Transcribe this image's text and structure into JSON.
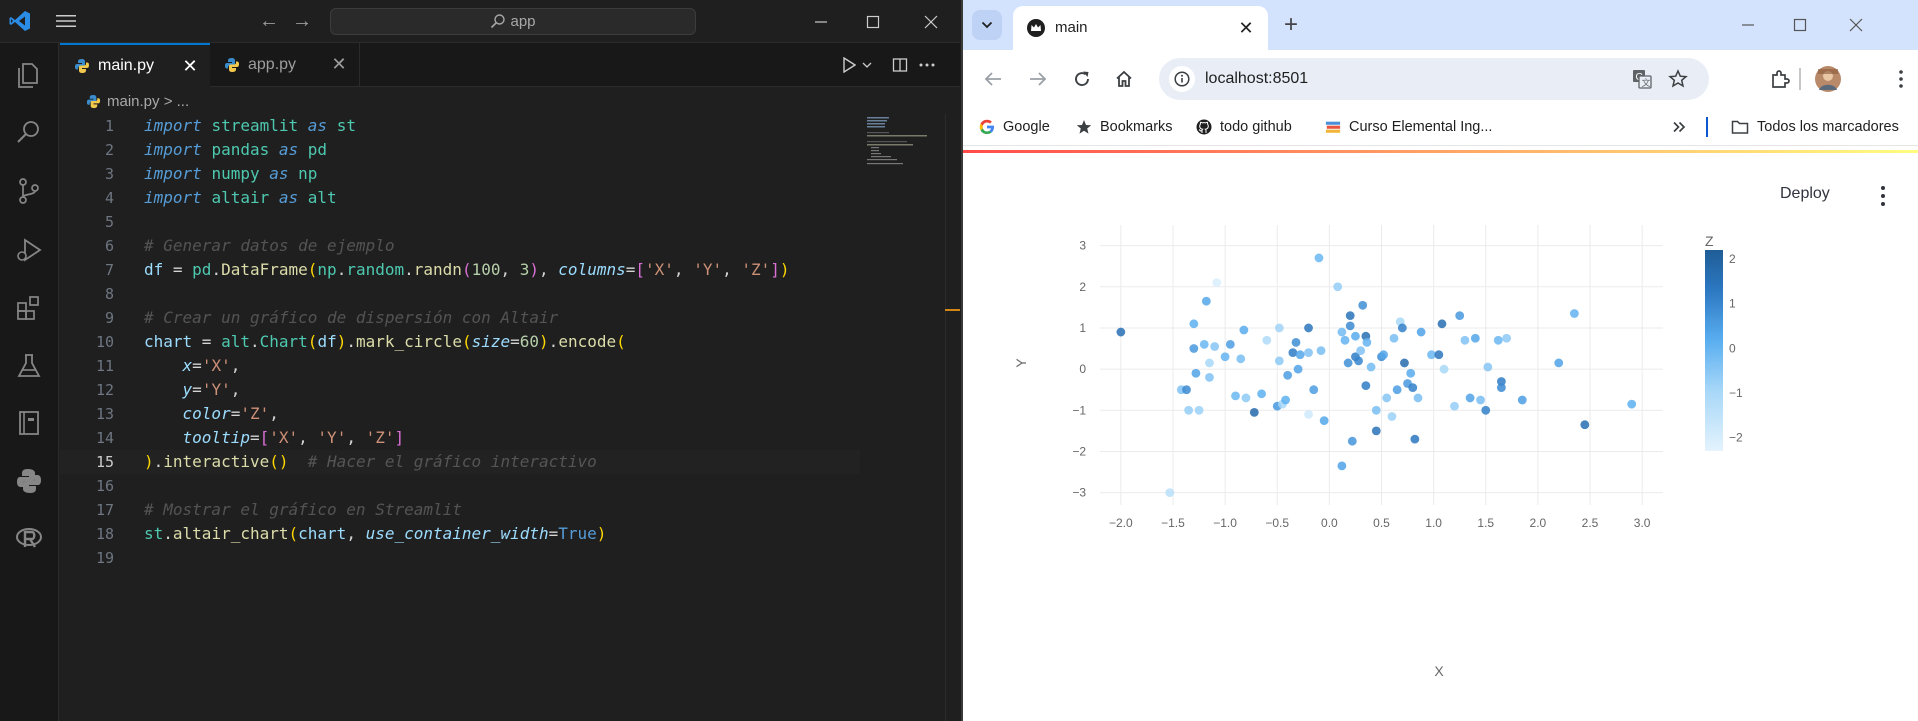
{
  "vscode": {
    "search_text": "app",
    "tabs": [
      {
        "label": "main.py",
        "active": true
      },
      {
        "label": "app.py",
        "active": false
      }
    ],
    "breadcrumb": {
      "file": "main.py",
      "sep": ">",
      "more": "..."
    },
    "current_line": 15,
    "line_numbers": [
      "1",
      "2",
      "3",
      "4",
      "5",
      "6",
      "7",
      "8",
      "9",
      "10",
      "11",
      "12",
      "13",
      "14",
      "15",
      "16",
      "17",
      "18",
      "19"
    ],
    "code": {
      "l1": [
        "import",
        "streamlit",
        "as",
        "st"
      ],
      "l2": [
        "import",
        "pandas",
        "as",
        "pd"
      ],
      "l3": [
        "import",
        "numpy",
        "as",
        "np"
      ],
      "l4": [
        "import",
        "altair",
        "as",
        "alt"
      ],
      "l6": "# Generar datos de ejemplo",
      "l7": {
        "df": "df",
        "eq": " = ",
        "pd": "pd",
        "dot": ".",
        "DataFrame": "DataFrame",
        "np": "np",
        "random": "random",
        "randn": "randn",
        "n1": "100",
        "n2": "3",
        "columns": "columns",
        "s1": "'X'",
        "s2": "'Y'",
        "s3": "'Z'"
      },
      "l9": "# Crear un gráfico de dispersión con Altair",
      "l10": {
        "chart": "chart",
        "alt": "alt",
        "Chart": "Chart",
        "df": "df",
        "mark_circle": "mark_circle",
        "size": "size",
        "sixty": "60",
        "encode": "encode"
      },
      "l11": {
        "k": "x",
        "v": "'X'"
      },
      "l12": {
        "k": "y",
        "v": "'Y'"
      },
      "l13": {
        "k": "color",
        "v": "'Z'"
      },
      "l14": {
        "k": "tooltip",
        "s1": "'X'",
        "s2": "'Y'",
        "s3": "'Z'"
      },
      "l15": {
        "interactive": "interactive",
        "comment": "# Hacer el gráfico interactivo"
      },
      "l17": "# Mostrar el gráfico en Streamlit",
      "l18": {
        "st": "st",
        "fn": "altair_chart",
        "chart": "chart",
        "param": "use_container_width",
        "val": "True"
      }
    }
  },
  "chrome": {
    "tab_title": "main",
    "url": "localhost:8501",
    "bookmarks": [
      "Google",
      "Bookmarks",
      "todo github",
      "Curso Elemental Ing...",
      "Todos los marcadores"
    ],
    "colors": {
      "tabstrip": "#d3e3fd",
      "accent": "#0b57d0"
    }
  },
  "streamlit": {
    "deploy_label": "Deploy"
  },
  "chart_data": {
    "type": "scatter",
    "xlabel": "X",
    "ylabel": "Y",
    "legend_title": "Z",
    "legend_position": "right",
    "xlim": [
      -2.2,
      3.2
    ],
    "ylim": [
      -3.3,
      3.5
    ],
    "x_ticks": [
      -2.0,
      -1.5,
      -1.0,
      -0.5,
      0.0,
      0.5,
      1.0,
      1.5,
      2.0,
      2.5,
      3.0
    ],
    "x_tick_labels": [
      "−2.0",
      "−1.5",
      "−1.0",
      "−0.5",
      "0.0",
      "0.5",
      "1.0",
      "1.5",
      "2.0",
      "2.5",
      "3.0"
    ],
    "y_ticks": [
      -3,
      -2,
      -1,
      0,
      1,
      2,
      3
    ],
    "y_tick_labels": [
      "−3",
      "−2",
      "−1",
      "0",
      "1",
      "2",
      "3"
    ],
    "color_ticks": [
      2,
      1,
      0,
      -1,
      -2
    ],
    "color_tick_labels": [
      "2",
      "1",
      "0",
      "−1",
      "−2"
    ],
    "color_range": [
      -2.3,
      2.2
    ],
    "color_scale": [
      "#e4f3fd",
      "#a7d7f8",
      "#5aaef0",
      "#2c78c2",
      "#1f5d96"
    ],
    "grid": true,
    "points": [
      {
        "x": -2.0,
        "y": 0.9,
        "z": 1.4
      },
      {
        "x": -1.53,
        "y": -3.0,
        "z": -1.5
      },
      {
        "x": -1.42,
        "y": -0.5,
        "z": -0.6
      },
      {
        "x": -1.37,
        "y": -0.5,
        "z": 0.7
      },
      {
        "x": -1.35,
        "y": -1.0,
        "z": -0.9
      },
      {
        "x": -1.3,
        "y": 1.1,
        "z": -0.1
      },
      {
        "x": -1.3,
        "y": 0.5,
        "z": 0.4
      },
      {
        "x": -1.28,
        "y": -0.1,
        "z": 0.2
      },
      {
        "x": -1.25,
        "y": -1.0,
        "z": -1.0
      },
      {
        "x": -1.2,
        "y": 0.6,
        "z": -0.3
      },
      {
        "x": -1.18,
        "y": 1.65,
        "z": 0.1
      },
      {
        "x": -1.15,
        "y": 0.15,
        "z": -1.2
      },
      {
        "x": -1.15,
        "y": -0.2,
        "z": -0.6
      },
      {
        "x": -1.1,
        "y": 0.55,
        "z": -0.7
      },
      {
        "x": -1.08,
        "y": 2.1,
        "z": -2.1
      },
      {
        "x": -1.0,
        "y": 0.3,
        "z": -0.2
      },
      {
        "x": -0.95,
        "y": 0.6,
        "z": 0.3
      },
      {
        "x": -0.9,
        "y": -0.65,
        "z": -0.3
      },
      {
        "x": -0.85,
        "y": 0.25,
        "z": -0.5
      },
      {
        "x": -0.82,
        "y": 0.95,
        "z": 0.0
      },
      {
        "x": -0.8,
        "y": -0.7,
        "z": -0.8
      },
      {
        "x": -0.72,
        "y": -1.05,
        "z": 1.7
      },
      {
        "x": -0.65,
        "y": -0.6,
        "z": -0.1
      },
      {
        "x": -0.6,
        "y": 0.7,
        "z": -1.3
      },
      {
        "x": -0.5,
        "y": -0.9,
        "z": 0.4
      },
      {
        "x": -0.48,
        "y": 0.2,
        "z": -0.8
      },
      {
        "x": -0.48,
        "y": 1.0,
        "z": -1.1
      },
      {
        "x": -0.45,
        "y": -0.85,
        "z": -1.2
      },
      {
        "x": -0.42,
        "y": -0.75,
        "z": -0.1
      },
      {
        "x": -0.4,
        "y": -0.15,
        "z": 0.3
      },
      {
        "x": -0.35,
        "y": 0.4,
        "z": 1.0
      },
      {
        "x": -0.32,
        "y": 0.65,
        "z": 0.6
      },
      {
        "x": -0.3,
        "y": 0.0,
        "z": 0.2
      },
      {
        "x": -0.28,
        "y": 0.35,
        "z": 0.1
      },
      {
        "x": -0.2,
        "y": 1.0,
        "z": 1.2
      },
      {
        "x": -0.2,
        "y": -1.1,
        "z": -1.9
      },
      {
        "x": -0.2,
        "y": 0.4,
        "z": -0.6
      },
      {
        "x": -0.15,
        "y": -0.5,
        "z": 0.3
      },
      {
        "x": -0.1,
        "y": 2.7,
        "z": -0.3
      },
      {
        "x": -0.08,
        "y": 0.45,
        "z": -0.5
      },
      {
        "x": -0.05,
        "y": -1.25,
        "z": 0.1
      },
      {
        "x": 0.08,
        "y": 2.0,
        "z": -0.9
      },
      {
        "x": 0.12,
        "y": -2.35,
        "z": 0.2
      },
      {
        "x": 0.12,
        "y": 0.9,
        "z": -0.4
      },
      {
        "x": 0.15,
        "y": 0.7,
        "z": -0.2
      },
      {
        "x": 0.18,
        "y": 0.15,
        "z": 0.6
      },
      {
        "x": 0.2,
        "y": 1.3,
        "z": 1.3
      },
      {
        "x": 0.2,
        "y": 1.05,
        "z": 0.7
      },
      {
        "x": 0.22,
        "y": -1.75,
        "z": 0.5
      },
      {
        "x": 0.25,
        "y": 0.3,
        "z": 1.0
      },
      {
        "x": 0.25,
        "y": 0.8,
        "z": 0.0
      },
      {
        "x": 0.28,
        "y": 0.2,
        "z": 0.8
      },
      {
        "x": 0.3,
        "y": 0.45,
        "z": -0.6
      },
      {
        "x": 0.32,
        "y": 1.55,
        "z": 0.6
      },
      {
        "x": 0.35,
        "y": -0.4,
        "z": 1.0
      },
      {
        "x": 0.35,
        "y": 0.8,
        "z": 1.5
      },
      {
        "x": 0.36,
        "y": 0.65,
        "z": -0.2
      },
      {
        "x": 0.4,
        "y": 0.05,
        "z": -0.4
      },
      {
        "x": 0.45,
        "y": -1.0,
        "z": -0.5
      },
      {
        "x": 0.45,
        "y": -1.5,
        "z": 1.3
      },
      {
        "x": 0.5,
        "y": 0.3,
        "z": 0.7
      },
      {
        "x": 0.52,
        "y": 0.35,
        "z": 0.1
      },
      {
        "x": 0.55,
        "y": -0.7,
        "z": -0.7
      },
      {
        "x": 0.6,
        "y": -1.15,
        "z": -1.0
      },
      {
        "x": 0.62,
        "y": 0.75,
        "z": -0.5
      },
      {
        "x": 0.65,
        "y": -0.5,
        "z": 0.3
      },
      {
        "x": 0.68,
        "y": 1.15,
        "z": -1.2
      },
      {
        "x": 0.7,
        "y": 1.0,
        "z": 0.9
      },
      {
        "x": 0.72,
        "y": 0.15,
        "z": 1.6
      },
      {
        "x": 0.75,
        "y": -0.35,
        "z": 0.4
      },
      {
        "x": 0.78,
        "y": -0.1,
        "z": 0.0
      },
      {
        "x": 0.8,
        "y": -0.45,
        "z": 0.9
      },
      {
        "x": 0.82,
        "y": -1.7,
        "z": 1.1
      },
      {
        "x": 0.85,
        "y": -0.7,
        "z": -0.5
      },
      {
        "x": 0.88,
        "y": 0.9,
        "z": 0.2
      },
      {
        "x": 0.98,
        "y": 0.35,
        "z": -0.3
      },
      {
        "x": 1.05,
        "y": 0.35,
        "z": 1.2
      },
      {
        "x": 1.08,
        "y": 1.1,
        "z": 1.5
      },
      {
        "x": 1.1,
        "y": 0.0,
        "z": -1.2
      },
      {
        "x": 1.2,
        "y": -0.9,
        "z": -0.9
      },
      {
        "x": 1.25,
        "y": 1.3,
        "z": 0.4
      },
      {
        "x": 1.3,
        "y": 0.7,
        "z": -0.6
      },
      {
        "x": 1.35,
        "y": -0.7,
        "z": 0.2
      },
      {
        "x": 1.4,
        "y": 0.75,
        "z": 0.1
      },
      {
        "x": 1.45,
        "y": -0.75,
        "z": -0.5
      },
      {
        "x": 1.5,
        "y": -1.0,
        "z": 0.9
      },
      {
        "x": 1.52,
        "y": 0.05,
        "z": -0.7
      },
      {
        "x": 1.62,
        "y": 0.7,
        "z": -0.3
      },
      {
        "x": 1.65,
        "y": -0.3,
        "z": 1.0
      },
      {
        "x": 1.65,
        "y": -0.45,
        "z": 0.7
      },
      {
        "x": 1.7,
        "y": 0.75,
        "z": -0.8
      },
      {
        "x": 1.85,
        "y": -0.75,
        "z": 0.3
      },
      {
        "x": 2.2,
        "y": 0.15,
        "z": 0.2
      },
      {
        "x": 2.35,
        "y": 1.35,
        "z": -0.2
      },
      {
        "x": 2.45,
        "y": -1.35,
        "z": 1.5
      },
      {
        "x": 2.9,
        "y": -0.85,
        "z": -0.1
      }
    ]
  }
}
